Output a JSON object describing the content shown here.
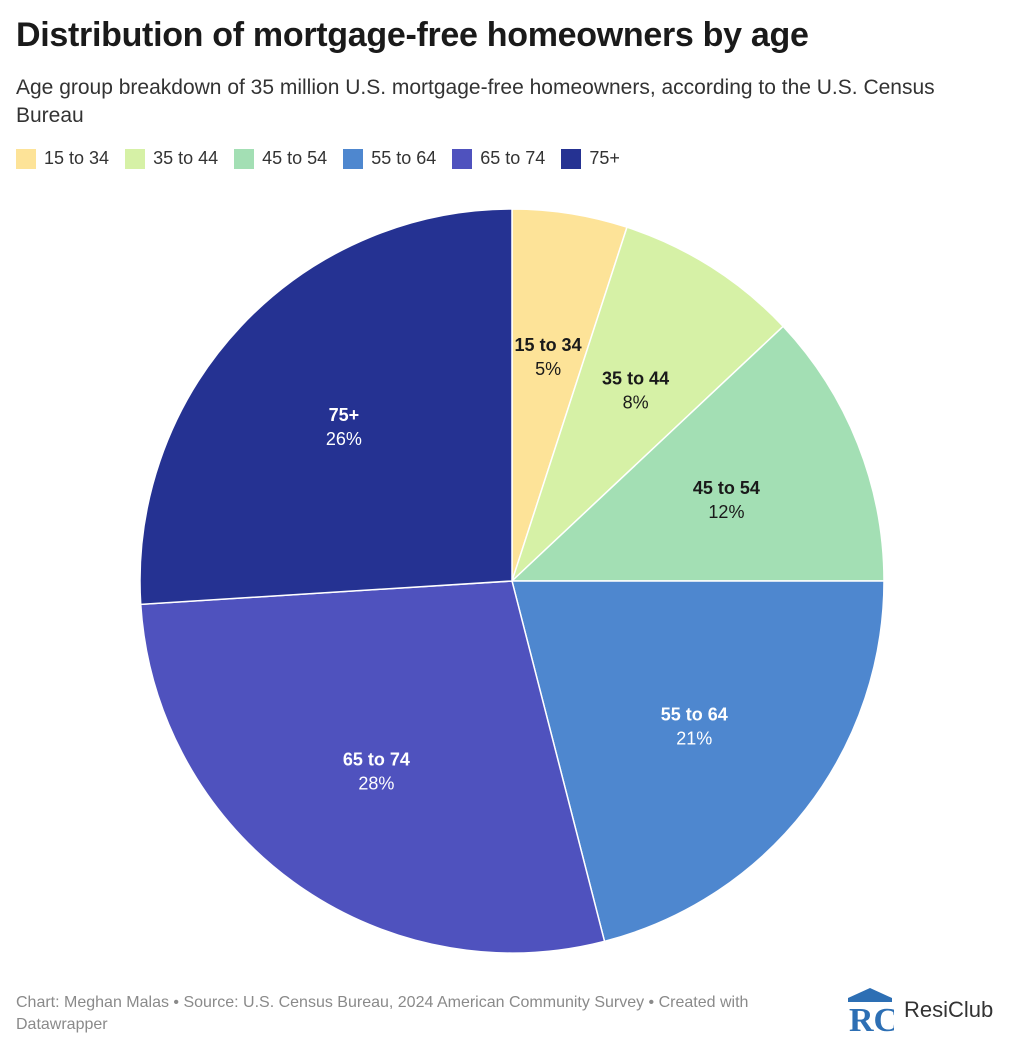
{
  "title": "Distribution of mortgage-free homeowners by age",
  "subtitle": "Age group breakdown of 35 million U.S. mortgage-free homeowners, according to the U.S. Census Bureau",
  "footer": {
    "text": "Chart: Meghan Malas • Source: U.S. Census Bureau, 2024 American Community Survey • Created with Datawrapper",
    "brand_name": "ResiClub",
    "brand_logo_text": "RC"
  },
  "chart_data": {
    "type": "pie",
    "legend_position": "top-left",
    "slices": [
      {
        "label": "15 to 34",
        "value": 5,
        "display": "5%",
        "color": "#fde398",
        "text_color": "#1a1a1a"
      },
      {
        "label": "35 to 44",
        "value": 8,
        "display": "8%",
        "color": "#d6f1a6",
        "text_color": "#1a1a1a"
      },
      {
        "label": "45 to 54",
        "value": 12,
        "display": "12%",
        "color": "#a3dfb4",
        "text_color": "#1a1a1a"
      },
      {
        "label": "55 to 64",
        "value": 21,
        "display": "21%",
        "color": "#4e87cf",
        "text_color": "#ffffff"
      },
      {
        "label": "65 to 74",
        "value": 28,
        "display": "28%",
        "color": "#4f52be",
        "text_color": "#ffffff"
      },
      {
        "label": "75+",
        "value": 26,
        "display": "26%",
        "color": "#253292",
        "text_color": "#ffffff"
      }
    ]
  }
}
